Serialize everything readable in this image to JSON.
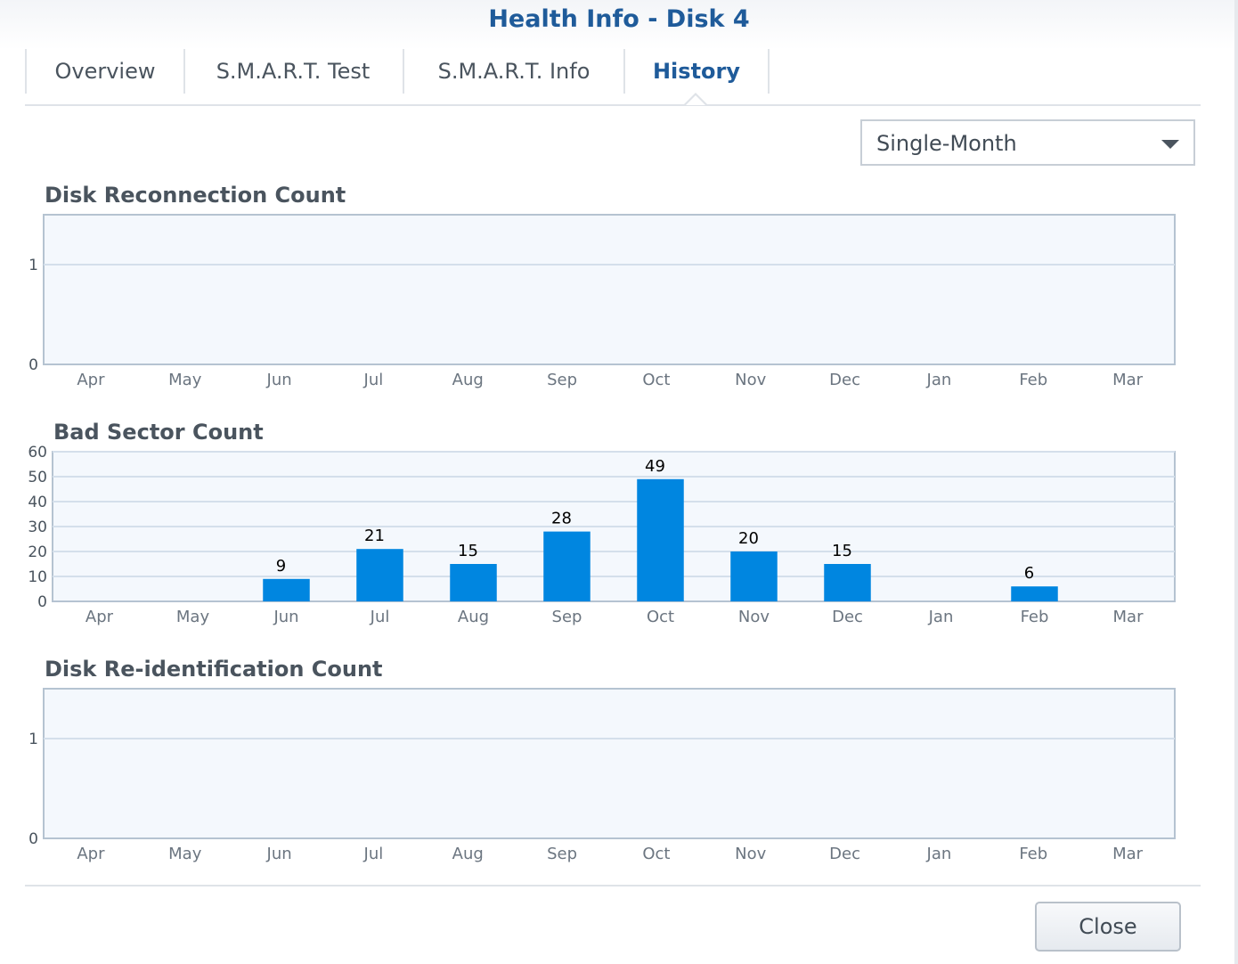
{
  "window": {
    "title": "Health Info - Disk 4"
  },
  "tabs": [
    {
      "label": "Overview",
      "active": false
    },
    {
      "label": "S.M.A.R.T. Test",
      "active": false
    },
    {
      "label": "S.M.A.R.T. Info",
      "active": false
    },
    {
      "label": "History",
      "active": true
    }
  ],
  "period_select": {
    "value": "Single-Month",
    "icon": "chevron-down-icon"
  },
  "colors": {
    "title": "#1f5b9a",
    "bar": "#0086e0",
    "plot_bg": "#f4f8fd",
    "grid": "#d4dfeb",
    "frame": "#b5c3d1"
  },
  "chart_data": [
    {
      "type": "bar",
      "title": "Disk Reconnection Count",
      "categories": [
        "Apr",
        "May",
        "Jun",
        "Jul",
        "Aug",
        "Sep",
        "Oct",
        "Nov",
        "Dec",
        "Jan",
        "Feb",
        "Mar"
      ],
      "values": [
        0,
        0,
        0,
        0,
        0,
        0,
        0,
        0,
        0,
        0,
        0,
        0
      ],
      "yticks": [
        0,
        1
      ],
      "ylim": [
        0,
        1.5
      ],
      "grid": true
    },
    {
      "type": "bar",
      "title": "Bad Sector Count",
      "categories": [
        "Apr",
        "May",
        "Jun",
        "Jul",
        "Aug",
        "Sep",
        "Oct",
        "Nov",
        "Dec",
        "Jan",
        "Feb",
        "Mar"
      ],
      "values": [
        0,
        0,
        9,
        21,
        15,
        28,
        49,
        20,
        15,
        0,
        6,
        0
      ],
      "data_labels": [
        "",
        "",
        "9",
        "21",
        "15",
        "28",
        "49",
        "20",
        "15",
        "",
        "6",
        ""
      ],
      "yticks": [
        0,
        10,
        20,
        30,
        40,
        50,
        60
      ],
      "ylim": [
        0,
        60
      ],
      "grid": true
    },
    {
      "type": "bar",
      "title": "Disk Re-identification Count",
      "categories": [
        "Apr",
        "May",
        "Jun",
        "Jul",
        "Aug",
        "Sep",
        "Oct",
        "Nov",
        "Dec",
        "Jan",
        "Feb",
        "Mar"
      ],
      "values": [
        0,
        0,
        0,
        0,
        0,
        0,
        0,
        0,
        0,
        0,
        0,
        0
      ],
      "yticks": [
        0,
        1
      ],
      "ylim": [
        0,
        1.5
      ],
      "grid": true
    }
  ],
  "footer": {
    "close_label": "Close"
  }
}
